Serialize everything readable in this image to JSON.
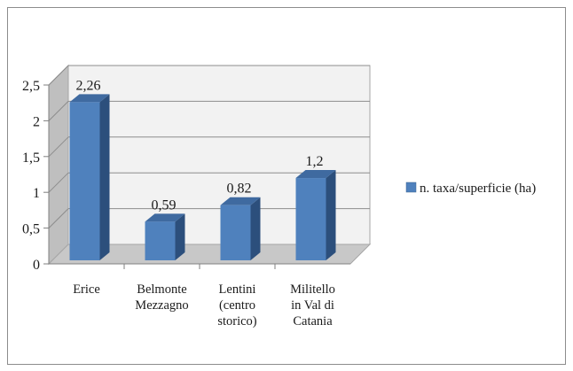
{
  "chart_data": {
    "type": "bar",
    "categories": [
      [
        "Erice"
      ],
      [
        "Belmonte",
        "Mezzagno"
      ],
      [
        "Lentini",
        "(centro",
        "storico)"
      ],
      [
        "Militello",
        "in Val di",
        "Catania"
      ]
    ],
    "series": [
      {
        "name": "n. taxa/superficie (ha)",
        "values": [
          2.26,
          0.59,
          0.82,
          1.2
        ]
      }
    ],
    "data_labels": [
      "2,26",
      "0,59",
      "0,82",
      "1,2"
    ],
    "ylim": [
      0,
      2.5
    ],
    "yticks": [
      0,
      0.5,
      1,
      1.5,
      2,
      2.5
    ],
    "ytick_labels": [
      "0",
      "0,5",
      "1",
      "1,5",
      "2",
      "2,5"
    ],
    "three_d": true,
    "grid": true,
    "legend": "right",
    "colors": {
      "bar_front": "#4f81bd",
      "bar_top": "#3f6aa0",
      "bar_side": "#2c4f7c",
      "wall": "#bfbfbf",
      "back_wall": "#f2f2f2",
      "floor": "#c8c8c8"
    }
  }
}
